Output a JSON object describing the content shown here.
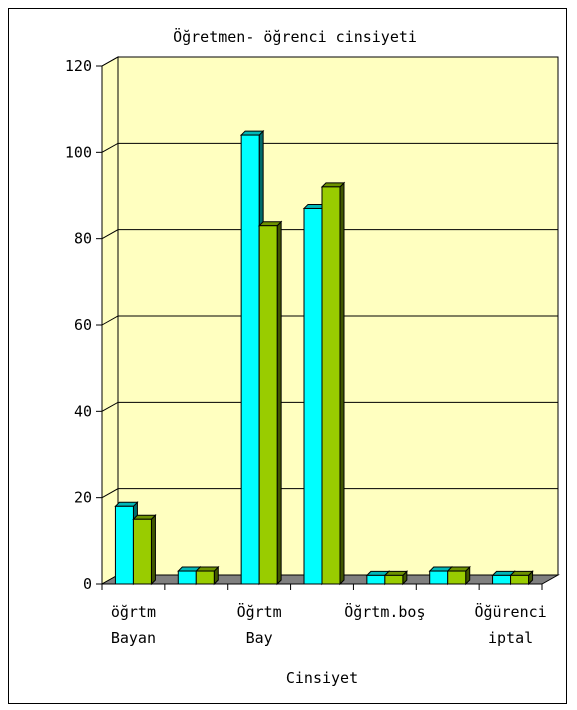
{
  "chart_data": {
    "type": "bar",
    "title": "Öğretmen- öğrenci cinsiyeti",
    "xlabel": "Cinsiyet",
    "ylabel": "",
    "categories": [
      [
        "öğrtm",
        "Bayan"
      ],
      [
        ""
      ],
      [
        "Öğrtm",
        "Bay"
      ],
      [
        ""
      ],
      [
        "Öğrtm.boş"
      ],
      [
        ""
      ],
      [
        "Öğürenci",
        "iptal"
      ]
    ],
    "series": [
      {
        "values": [
          18,
          3,
          104,
          87,
          2,
          3,
          2
        ],
        "color": "#00ffff"
      },
      {
        "values": [
          15,
          3,
          83,
          92,
          2,
          3,
          2
        ],
        "color": "#99cc00"
      }
    ],
    "ylim": [
      0,
      120
    ],
    "yticks": [
      0,
      20,
      40,
      60,
      80,
      100,
      120
    ],
    "grid": true,
    "plot_background": "#ffffc0",
    "floor_color": "#808080",
    "legend": "none"
  }
}
